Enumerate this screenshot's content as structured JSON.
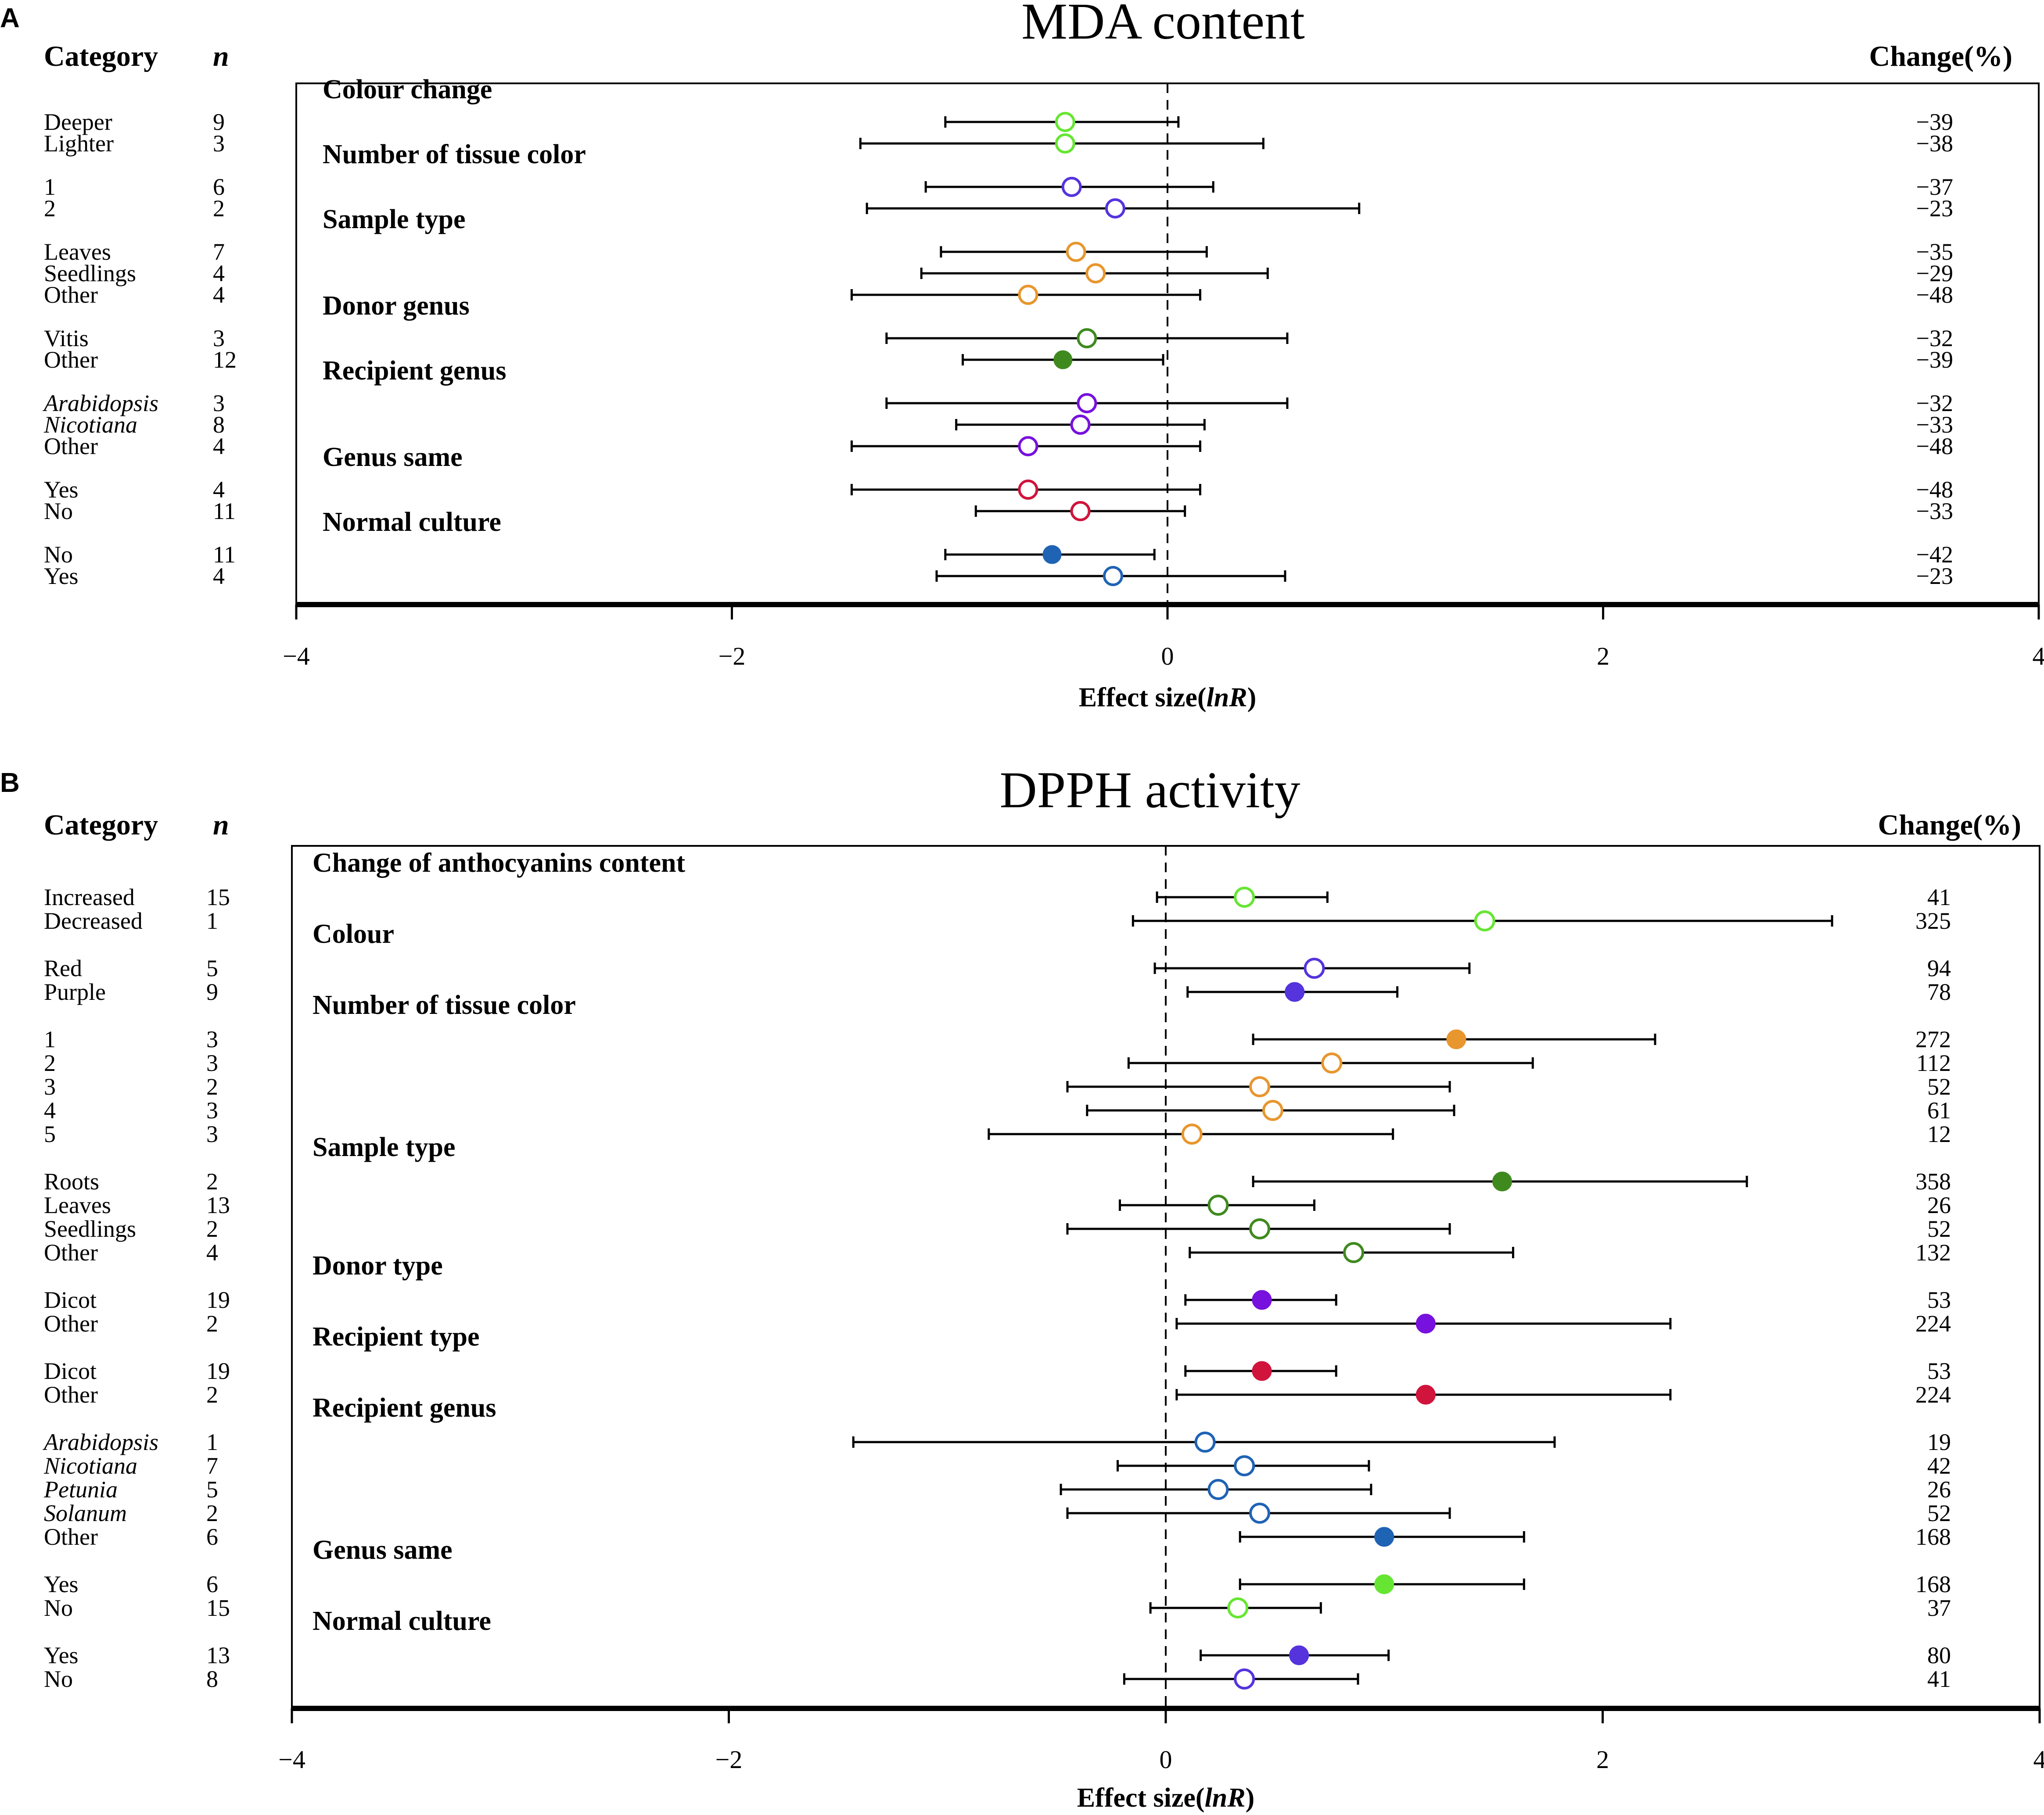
{
  "chart_data": [
    {
      "type": "forest",
      "panel": "A",
      "title": "MDA content",
      "headers": {
        "category": "Category",
        "n": "n",
        "change": "Change(%)"
      },
      "xlabel_prefix": "Effect size(",
      "xlabel_italic": "lnR",
      "xlabel_suffix": ")",
      "xlim": [
        -4,
        4
      ],
      "xticks": [
        -4,
        -2,
        0,
        2,
        4
      ],
      "xtick_labels": [
        "−4",
        "−2",
        "0",
        "2",
        "4"
      ],
      "groups": [
        {
          "name": "Colour change",
          "color": "#66e633",
          "items": [
            {
              "label": "Deeper",
              "n": "9",
              "est": -0.47,
              "lo": -1.02,
              "hi": 0.05,
              "change": "−39",
              "filled": false
            },
            {
              "label": "Lighter",
              "n": "3",
              "est": -0.47,
              "lo": -1.41,
              "hi": 0.44,
              "change": "−38",
              "filled": false
            }
          ]
        },
        {
          "name": "Number of tissue color",
          "color": "#5533dd",
          "items": [
            {
              "label": "1",
              "n": "6",
              "est": -0.44,
              "lo": -1.11,
              "hi": 0.21,
              "change": "−37",
              "filled": false
            },
            {
              "label": "2",
              "n": "2",
              "est": -0.24,
              "lo": -1.38,
              "hi": 0.88,
              "change": "−23",
              "filled": false
            }
          ]
        },
        {
          "name": "Sample type",
          "color": "#e8962e",
          "items": [
            {
              "label": "Leaves",
              "n": "7",
              "est": -0.42,
              "lo": -1.04,
              "hi": 0.18,
              "change": "−35",
              "filled": false
            },
            {
              "label": "Seedlings",
              "n": "4",
              "est": -0.33,
              "lo": -1.13,
              "hi": 0.46,
              "change": "−29",
              "filled": false
            },
            {
              "label": "Other",
              "n": "4",
              "est": -0.64,
              "lo": -1.45,
              "hi": 0.15,
              "change": "−48",
              "filled": false
            }
          ]
        },
        {
          "name": "Donor genus",
          "color": "#3f8a1f",
          "items": [
            {
              "label": "Vitis",
              "n": "3",
              "est": -0.37,
              "lo": -1.29,
              "hi": 0.55,
              "change": "−32",
              "filled": false
            },
            {
              "label": "Other",
              "n": "12",
              "est": -0.48,
              "lo": -0.94,
              "hi": -0.02,
              "change": "−39",
              "filled": true
            }
          ]
        },
        {
          "name": "Recipient genus",
          "color": "#7711dd",
          "items": [
            {
              "label": "Arabidopsis",
              "n": "3",
              "est": -0.37,
              "lo": -1.29,
              "hi": 0.55,
              "change": "−32",
              "filled": false,
              "italic": true
            },
            {
              "label": "Nicotiana",
              "n": "8",
              "est": -0.4,
              "lo": -0.97,
              "hi": 0.17,
              "change": "−33",
              "filled": false,
              "italic": true
            },
            {
              "label": "Other",
              "n": "4",
              "est": -0.64,
              "lo": -1.45,
              "hi": 0.15,
              "change": "−48",
              "filled": false
            }
          ]
        },
        {
          "name": "Genus same",
          "color": "#d0143c",
          "items": [
            {
              "label": "Yes",
              "n": "4",
              "est": -0.64,
              "lo": -1.45,
              "hi": 0.15,
              "change": "−48",
              "filled": false
            },
            {
              "label": "No",
              "n": "11",
              "est": -0.4,
              "lo": -0.88,
              "hi": 0.08,
              "change": "−33",
              "filled": false
            }
          ]
        },
        {
          "name": "Normal culture",
          "color": "#1f63b5",
          "items": [
            {
              "label": "No",
              "n": "11",
              "est": -0.53,
              "lo": -1.02,
              "hi": -0.06,
              "change": "−42",
              "filled": true
            },
            {
              "label": "Yes",
              "n": "4",
              "est": -0.25,
              "lo": -1.06,
              "hi": 0.54,
              "change": "−23",
              "filled": false
            }
          ]
        }
      ]
    },
    {
      "type": "forest",
      "panel": "B",
      "title": "DPPH activity",
      "headers": {
        "category": "Category",
        "n": "n",
        "change": "Change(%)"
      },
      "xlabel_prefix": "Effect size(",
      "xlabel_italic": "lnR",
      "xlabel_suffix": ")",
      "xlim": [
        -4,
        4
      ],
      "xticks": [
        -4,
        -2,
        0,
        2,
        4
      ],
      "xtick_labels": [
        "−4",
        "−2",
        "0",
        "2",
        "4"
      ],
      "groups": [
        {
          "name": "Change of anthocyanins content",
          "color": "#66e633",
          "items": [
            {
              "label": "Increased",
              "n": "15",
              "est": 0.36,
              "lo": -0.04,
              "hi": 0.74,
              "change": "41",
              "filled": false
            },
            {
              "label": "Decreased",
              "n": "1",
              "est": 1.46,
              "lo": -0.15,
              "hi": 3.05,
              "change": "325",
              "filled": false
            }
          ]
        },
        {
          "name": "Colour",
          "color": "#5533dd",
          "items": [
            {
              "label": "Red",
              "n": "5",
              "est": 0.68,
              "lo": -0.05,
              "hi": 1.39,
              "change": "94",
              "filled": false
            },
            {
              "label": "Purple",
              "n": "9",
              "est": 0.59,
              "lo": 0.1,
              "hi": 1.06,
              "change": "78",
              "filled": true
            }
          ]
        },
        {
          "name": "Number of tissue color",
          "color": "#e8962e",
          "items": [
            {
              "label": "1",
              "n": "3",
              "est": 1.33,
              "lo": 0.4,
              "hi": 2.24,
              "change": "272",
              "filled": true
            },
            {
              "label": "2",
              "n": "3",
              "est": 0.76,
              "lo": -0.17,
              "hi": 1.68,
              "change": "112",
              "filled": false
            },
            {
              "label": "3",
              "n": "2",
              "est": 0.43,
              "lo": -0.45,
              "hi": 1.3,
              "change": "52",
              "filled": false
            },
            {
              "label": "4",
              "n": "3",
              "est": 0.49,
              "lo": -0.36,
              "hi": 1.32,
              "change": "61",
              "filled": false
            },
            {
              "label": "5",
              "n": "3",
              "est": 0.12,
              "lo": -0.81,
              "hi": 1.04,
              "change": "12",
              "filled": false
            }
          ]
        },
        {
          "name": "Sample type",
          "color": "#3f8a1f",
          "items": [
            {
              "label": "Roots",
              "n": "2",
              "est": 1.54,
              "lo": 0.4,
              "hi": 2.66,
              "change": "358",
              "filled": true
            },
            {
              "label": "Leaves",
              "n": "13",
              "est": 0.24,
              "lo": -0.21,
              "hi": 0.68,
              "change": "26",
              "filled": false
            },
            {
              "label": "Seedlings",
              "n": "2",
              "est": 0.43,
              "lo": -0.45,
              "hi": 1.3,
              "change": "52",
              "filled": false
            },
            {
              "label": "Other",
              "n": "4",
              "est": 0.86,
              "lo": 0.11,
              "hi": 1.59,
              "change": "132",
              "filled": false
            }
          ]
        },
        {
          "name": "Donor type",
          "color": "#7711dd",
          "items": [
            {
              "label": "Dicot",
              "n": "19",
              "est": 0.44,
              "lo": 0.09,
              "hi": 0.78,
              "change": "53",
              "filled": true
            },
            {
              "label": "Other",
              "n": "2",
              "est": 1.19,
              "lo": 0.05,
              "hi": 2.31,
              "change": "224",
              "filled": true
            }
          ]
        },
        {
          "name": "Recipient type",
          "color": "#d0143c",
          "items": [
            {
              "label": "Dicot",
              "n": "19",
              "est": 0.44,
              "lo": 0.09,
              "hi": 0.78,
              "change": "53",
              "filled": true
            },
            {
              "label": "Other",
              "n": "2",
              "est": 1.19,
              "lo": 0.05,
              "hi": 2.31,
              "change": "224",
              "filled": true
            }
          ]
        },
        {
          "name": "Recipient genus",
          "color": "#1f63b5",
          "items": [
            {
              "label": "Arabidopsis",
              "n": "1",
              "est": 0.18,
              "lo": -1.43,
              "hi": 1.78,
              "change": "19",
              "filled": false,
              "italic": true
            },
            {
              "label": "Nicotiana",
              "n": "7",
              "est": 0.36,
              "lo": -0.22,
              "hi": 0.93,
              "change": "42",
              "filled": false,
              "italic": true
            },
            {
              "label": "Petunia",
              "n": "5",
              "est": 0.24,
              "lo": -0.48,
              "hi": 0.94,
              "change": "26",
              "filled": false,
              "italic": true
            },
            {
              "label": "Solanum",
              "n": "2",
              "est": 0.43,
              "lo": -0.45,
              "hi": 1.3,
              "change": "52",
              "filled": false,
              "italic": true
            },
            {
              "label": "Other",
              "n": "6",
              "est": 1.0,
              "lo": 0.34,
              "hi": 1.64,
              "change": "168",
              "filled": true
            }
          ]
        },
        {
          "name": "Genus same",
          "color": "#66e633",
          "items": [
            {
              "label": "Yes",
              "n": "6",
              "est": 1.0,
              "lo": 0.34,
              "hi": 1.64,
              "change": "168",
              "filled": true
            },
            {
              "label": "No",
              "n": "15",
              "est": 0.33,
              "lo": -0.07,
              "hi": 0.71,
              "change": "37",
              "filled": false
            }
          ]
        },
        {
          "name": "Normal culture",
          "color": "#5533dd",
          "items": [
            {
              "label": "Yes",
              "n": "13",
              "est": 0.61,
              "lo": 0.16,
              "hi": 1.02,
              "change": "80",
              "filled": true
            },
            {
              "label": "No",
              "n": "8",
              "est": 0.36,
              "lo": -0.19,
              "hi": 0.88,
              "change": "41",
              "filled": false
            }
          ]
        }
      ]
    }
  ]
}
